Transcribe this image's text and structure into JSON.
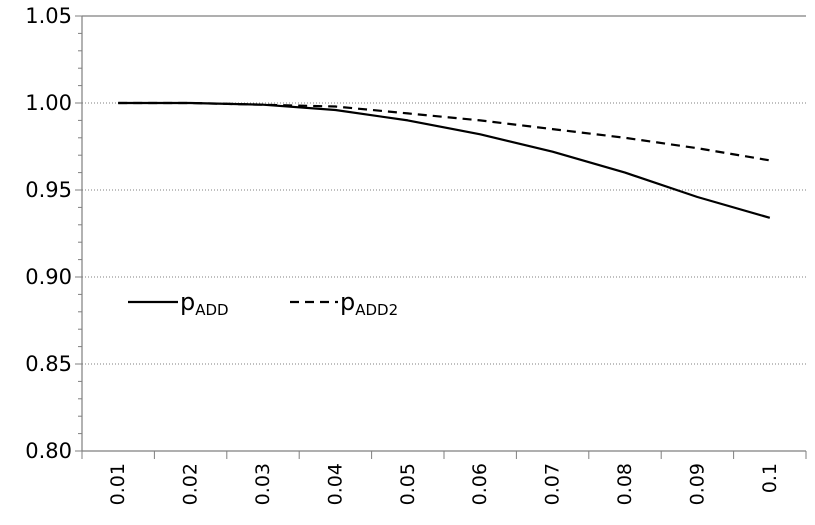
{
  "chart_data": {
    "type": "line",
    "title": "",
    "xlabel": "",
    "ylabel": "",
    "x": [
      "0.01",
      "0.02",
      "0.03",
      "0.04",
      "0.05",
      "0.06",
      "0.07",
      "0.08",
      "0.09",
      "0.1"
    ],
    "ylim": [
      0.8,
      1.05
    ],
    "y_ticks": [
      "0.80",
      "0.85",
      "0.90",
      "0.95",
      "1.00",
      "1.05"
    ],
    "grid": "horizontal dotted",
    "legend_position": "left-middle",
    "series": [
      {
        "name": "p",
        "name_subscript": "ADD",
        "style": "solid",
        "values": [
          1.0,
          1.0,
          0.999,
          0.996,
          0.99,
          0.982,
          0.972,
          0.96,
          0.946,
          0.934
        ]
      },
      {
        "name": "p",
        "name_subscript": "ADD2",
        "style": "dashed",
        "values": [
          1.0,
          1.0,
          0.999,
          0.998,
          0.994,
          0.99,
          0.985,
          0.98,
          0.974,
          0.967
        ]
      }
    ]
  },
  "colors": {
    "line": "#000000",
    "axis": "#7f7f7f",
    "grid": "#7f7f7f"
  }
}
